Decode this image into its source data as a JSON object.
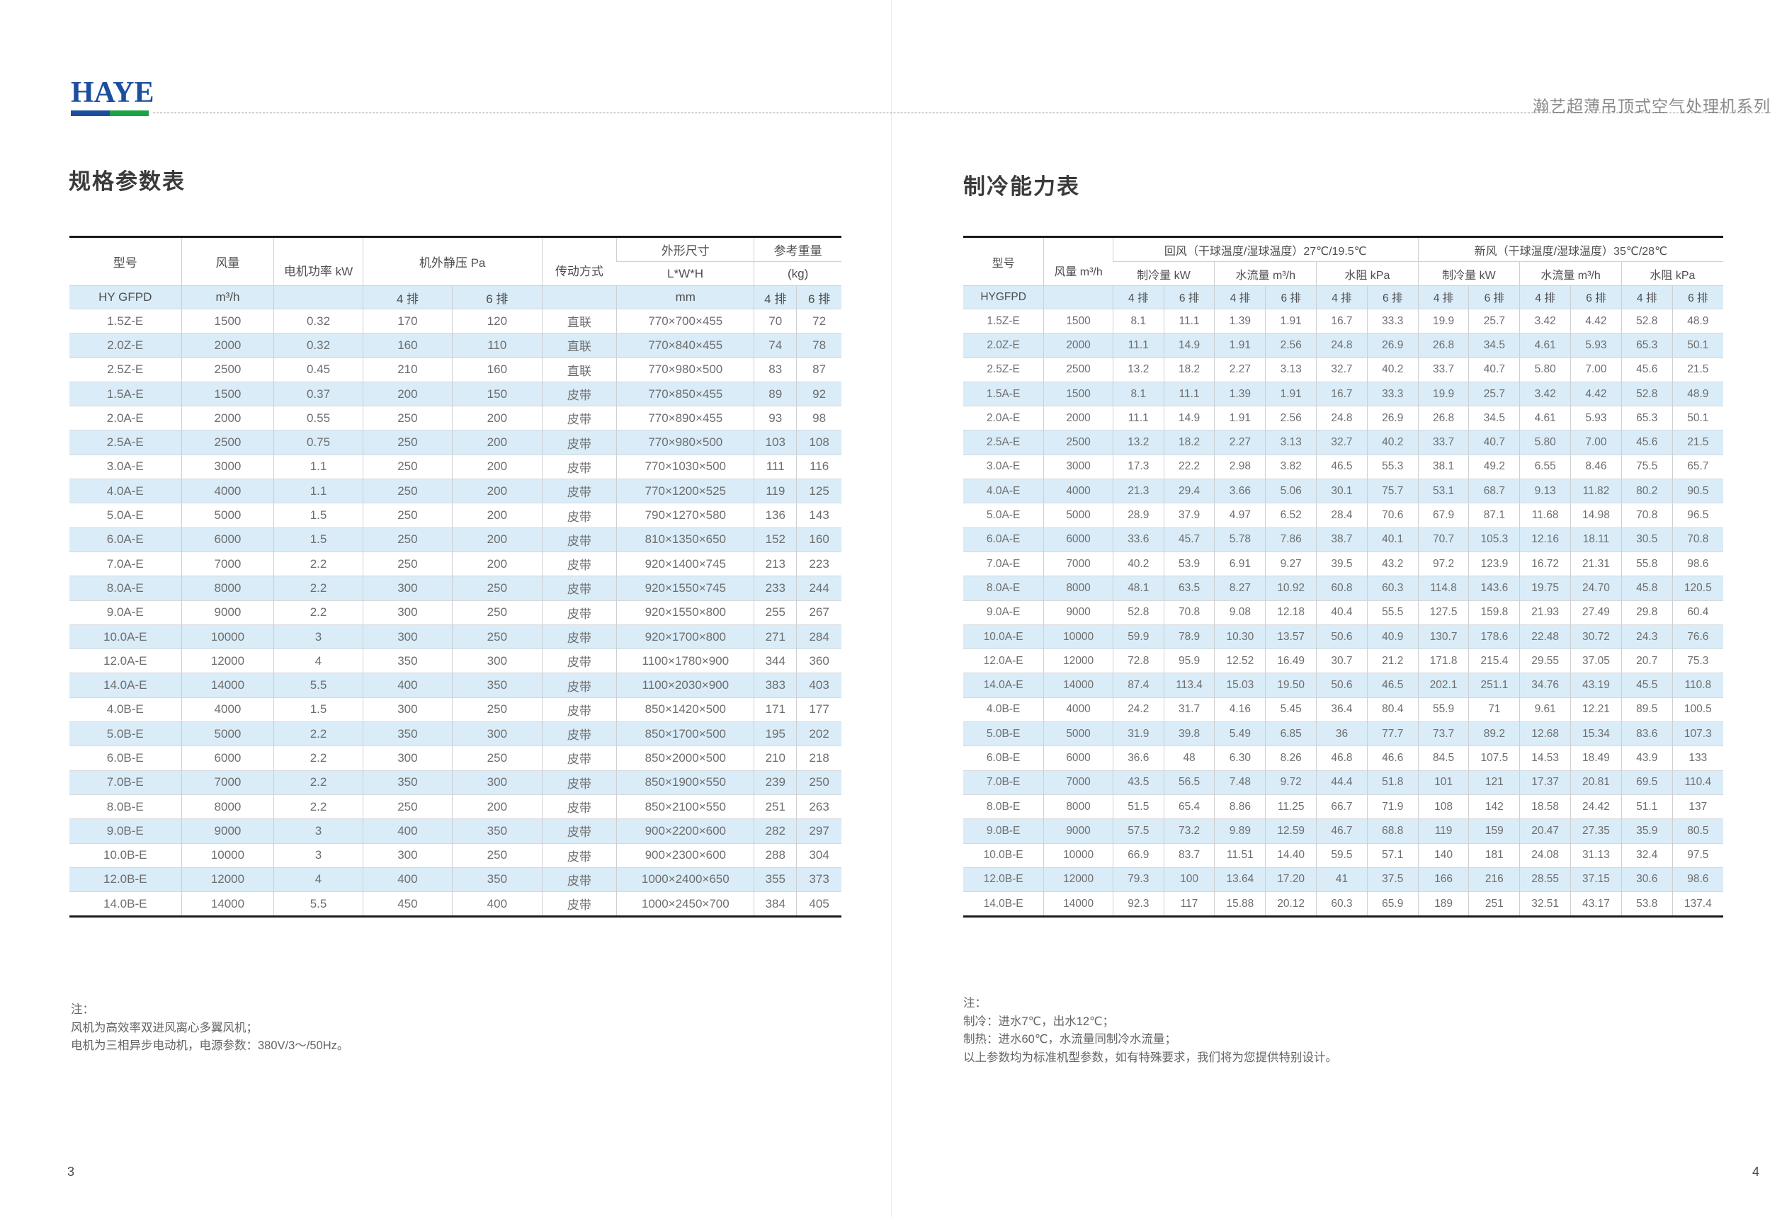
{
  "page": {
    "logo_text": "HAYE",
    "series_title": "瀚艺超薄吊顶式空气处理机系列",
    "page_number_left": "3",
    "page_number_right": "4",
    "colors": {
      "logo_blue": "#1d4e9e",
      "logo_green": "#1ba348",
      "row_highlight": "#d9ecf8"
    }
  },
  "spec_table": {
    "title": "规格参数表",
    "header": {
      "model": "型号",
      "airflow": "风量",
      "motor_power": "电机功率 kW",
      "static_pressure": "机外静压 Pa",
      "transmission": "传动方式",
      "dimensions": "外形尺寸",
      "dimensions_sub": "L*W*H",
      "weight": "参考重量",
      "weight_sub": "(kg)"
    },
    "unit_rows": [
      [
        "HY GFPD",
        "m³/h",
        "",
        "4 排",
        "6 排",
        "",
        "mm",
        "4 排",
        "6 排"
      ]
    ],
    "rows": [
      [
        "1.5Z-E",
        "1500",
        "0.32",
        "170",
        "120",
        "直联",
        "770×700×455",
        "70",
        "72"
      ],
      [
        "2.0Z-E",
        "2000",
        "0.32",
        "160",
        "110",
        "直联",
        "770×840×455",
        "74",
        "78"
      ],
      [
        "2.5Z-E",
        "2500",
        "0.45",
        "210",
        "160",
        "直联",
        "770×980×500",
        "83",
        "87"
      ],
      [
        "1.5A-E",
        "1500",
        "0.37",
        "200",
        "150",
        "皮带",
        "770×850×455",
        "89",
        "92"
      ],
      [
        "2.0A-E",
        "2000",
        "0.55",
        "250",
        "200",
        "皮带",
        "770×890×455",
        "93",
        "98"
      ],
      [
        "2.5A-E",
        "2500",
        "0.75",
        "250",
        "200",
        "皮带",
        "770×980×500",
        "103",
        "108"
      ],
      [
        "3.0A-E",
        "3000",
        "1.1",
        "250",
        "200",
        "皮带",
        "770×1030×500",
        "111",
        "116"
      ],
      [
        "4.0A-E",
        "4000",
        "1.1",
        "250",
        "200",
        "皮带",
        "770×1200×525",
        "119",
        "125"
      ],
      [
        "5.0A-E",
        "5000",
        "1.5",
        "250",
        "200",
        "皮带",
        "790×1270×580",
        "136",
        "143"
      ],
      [
        "6.0A-E",
        "6000",
        "1.5",
        "250",
        "200",
        "皮带",
        "810×1350×650",
        "152",
        "160"
      ],
      [
        "7.0A-E",
        "7000",
        "2.2",
        "250",
        "200",
        "皮带",
        "920×1400×745",
        "213",
        "223"
      ],
      [
        "8.0A-E",
        "8000",
        "2.2",
        "300",
        "250",
        "皮带",
        "920×1550×745",
        "233",
        "244"
      ],
      [
        "9.0A-E",
        "9000",
        "2.2",
        "300",
        "250",
        "皮带",
        "920×1550×800",
        "255",
        "267"
      ],
      [
        "10.0A-E",
        "10000",
        "3",
        "300",
        "250",
        "皮带",
        "920×1700×800",
        "271",
        "284"
      ],
      [
        "12.0A-E",
        "12000",
        "4",
        "350",
        "300",
        "皮带",
        "1100×1780×900",
        "344",
        "360"
      ],
      [
        "14.0A-E",
        "14000",
        "5.5",
        "400",
        "350",
        "皮带",
        "1100×2030×900",
        "383",
        "403"
      ],
      [
        "4.0B-E",
        "4000",
        "1.5",
        "300",
        "250",
        "皮带",
        "850×1420×500",
        "171",
        "177"
      ],
      [
        "5.0B-E",
        "5000",
        "2.2",
        "350",
        "300",
        "皮带",
        "850×1700×500",
        "195",
        "202"
      ],
      [
        "6.0B-E",
        "6000",
        "2.2",
        "300",
        "250",
        "皮带",
        "850×2000×500",
        "210",
        "218"
      ],
      [
        "7.0B-E",
        "7000",
        "2.2",
        "350",
        "300",
        "皮带",
        "850×1900×550",
        "239",
        "250"
      ],
      [
        "8.0B-E",
        "8000",
        "2.2",
        "250",
        "200",
        "皮带",
        "850×2100×550",
        "251",
        "263"
      ],
      [
        "9.0B-E",
        "9000",
        "3",
        "400",
        "350",
        "皮带",
        "900×2200×600",
        "282",
        "297"
      ],
      [
        "10.0B-E",
        "10000",
        "3",
        "300",
        "250",
        "皮带",
        "900×2300×600",
        "288",
        "304"
      ],
      [
        "12.0B-E",
        "12000",
        "4",
        "400",
        "350",
        "皮带",
        "1000×2400×650",
        "355",
        "373"
      ],
      [
        "14.0B-E",
        "14000",
        "5.5",
        "450",
        "400",
        "皮带",
        "1000×2450×700",
        "384",
        "405"
      ]
    ]
  },
  "cooling_table": {
    "title": "制冷能力表",
    "header": {
      "model": "型号",
      "airflow": "风量 m³/h",
      "return_air": "回风（干球温度/湿球温度）27℃/19.5℃",
      "fresh_air": "新风（干球温度/湿球温度）35℃/28℃",
      "cooling_capacity": "制冷量 kW",
      "water_flow": "水流量 m³/h",
      "water_resistance": "水阻 kPa"
    },
    "unit_rows": [
      [
        "HYGFPD",
        "",
        "4 排",
        "6 排",
        "4 排",
        "6 排",
        "4 排",
        "6 排",
        "4 排",
        "6 排",
        "4 排",
        "6 排",
        "4 排",
        "6 排"
      ]
    ],
    "rows": [
      [
        "1.5Z-E",
        "1500",
        "8.1",
        "11.1",
        "1.39",
        "1.91",
        "16.7",
        "33.3",
        "19.9",
        "25.7",
        "3.42",
        "4.42",
        "52.8",
        "48.9"
      ],
      [
        "2.0Z-E",
        "2000",
        "11.1",
        "14.9",
        "1.91",
        "2.56",
        "24.8",
        "26.9",
        "26.8",
        "34.5",
        "4.61",
        "5.93",
        "65.3",
        "50.1"
      ],
      [
        "2.5Z-E",
        "2500",
        "13.2",
        "18.2",
        "2.27",
        "3.13",
        "32.7",
        "40.2",
        "33.7",
        "40.7",
        "5.80",
        "7.00",
        "45.6",
        "21.5"
      ],
      [
        "1.5A-E",
        "1500",
        "8.1",
        "11.1",
        "1.39",
        "1.91",
        "16.7",
        "33.3",
        "19.9",
        "25.7",
        "3.42",
        "4.42",
        "52.8",
        "48.9"
      ],
      [
        "2.0A-E",
        "2000",
        "11.1",
        "14.9",
        "1.91",
        "2.56",
        "24.8",
        "26.9",
        "26.8",
        "34.5",
        "4.61",
        "5.93",
        "65.3",
        "50.1"
      ],
      [
        "2.5A-E",
        "2500",
        "13.2",
        "18.2",
        "2.27",
        "3.13",
        "32.7",
        "40.2",
        "33.7",
        "40.7",
        "5.80",
        "7.00",
        "45.6",
        "21.5"
      ],
      [
        "3.0A-E",
        "3000",
        "17.3",
        "22.2",
        "2.98",
        "3.82",
        "46.5",
        "55.3",
        "38.1",
        "49.2",
        "6.55",
        "8.46",
        "75.5",
        "65.7"
      ],
      [
        "4.0A-E",
        "4000",
        "21.3",
        "29.4",
        "3.66",
        "5.06",
        "30.1",
        "75.7",
        "53.1",
        "68.7",
        "9.13",
        "11.82",
        "80.2",
        "90.5"
      ],
      [
        "5.0A-E",
        "5000",
        "28.9",
        "37.9",
        "4.97",
        "6.52",
        "28.4",
        "70.6",
        "67.9",
        "87.1",
        "11.68",
        "14.98",
        "70.8",
        "96.5"
      ],
      [
        "6.0A-E",
        "6000",
        "33.6",
        "45.7",
        "5.78",
        "7.86",
        "38.7",
        "40.1",
        "70.7",
        "105.3",
        "12.16",
        "18.11",
        "30.5",
        "70.8"
      ],
      [
        "7.0A-E",
        "7000",
        "40.2",
        "53.9",
        "6.91",
        "9.27",
        "39.5",
        "43.2",
        "97.2",
        "123.9",
        "16.72",
        "21.31",
        "55.8",
        "98.6"
      ],
      [
        "8.0A-E",
        "8000",
        "48.1",
        "63.5",
        "8.27",
        "10.92",
        "60.8",
        "60.3",
        "114.8",
        "143.6",
        "19.75",
        "24.70",
        "45.8",
        "120.5"
      ],
      [
        "9.0A-E",
        "9000",
        "52.8",
        "70.8",
        "9.08",
        "12.18",
        "40.4",
        "55.5",
        "127.5",
        "159.8",
        "21.93",
        "27.49",
        "29.8",
        "60.4"
      ],
      [
        "10.0A-E",
        "10000",
        "59.9",
        "78.9",
        "10.30",
        "13.57",
        "50.6",
        "40.9",
        "130.7",
        "178.6",
        "22.48",
        "30.72",
        "24.3",
        "76.6"
      ],
      [
        "12.0A-E",
        "12000",
        "72.8",
        "95.9",
        "12.52",
        "16.49",
        "30.7",
        "21.2",
        "171.8",
        "215.4",
        "29.55",
        "37.05",
        "20.7",
        "75.3"
      ],
      [
        "14.0A-E",
        "14000",
        "87.4",
        "113.4",
        "15.03",
        "19.50",
        "50.6",
        "46.5",
        "202.1",
        "251.1",
        "34.76",
        "43.19",
        "45.5",
        "110.8"
      ],
      [
        "4.0B-E",
        "4000",
        "24.2",
        "31.7",
        "4.16",
        "5.45",
        "36.4",
        "80.4",
        "55.9",
        "71",
        "9.61",
        "12.21",
        "89.5",
        "100.5"
      ],
      [
        "5.0B-E",
        "5000",
        "31.9",
        "39.8",
        "5.49",
        "6.85",
        "36",
        "77.7",
        "73.7",
        "89.2",
        "12.68",
        "15.34",
        "83.6",
        "107.3"
      ],
      [
        "6.0B-E",
        "6000",
        "36.6",
        "48",
        "6.30",
        "8.26",
        "46.8",
        "46.6",
        "84.5",
        "107.5",
        "14.53",
        "18.49",
        "43.9",
        "133"
      ],
      [
        "7.0B-E",
        "7000",
        "43.5",
        "56.5",
        "7.48",
        "9.72",
        "44.4",
        "51.8",
        "101",
        "121",
        "17.37",
        "20.81",
        "69.5",
        "110.4"
      ],
      [
        "8.0B-E",
        "8000",
        "51.5",
        "65.4",
        "8.86",
        "11.25",
        "66.7",
        "71.9",
        "108",
        "142",
        "18.58",
        "24.42",
        "51.1",
        "137"
      ],
      [
        "9.0B-E",
        "9000",
        "57.5",
        "73.2",
        "9.89",
        "12.59",
        "46.7",
        "68.8",
        "119",
        "159",
        "20.47",
        "27.35",
        "35.9",
        "80.5"
      ],
      [
        "10.0B-E",
        "10000",
        "66.9",
        "83.7",
        "11.51",
        "14.40",
        "59.5",
        "57.1",
        "140",
        "181",
        "24.08",
        "31.13",
        "32.4",
        "97.5"
      ],
      [
        "12.0B-E",
        "12000",
        "79.3",
        "100",
        "13.64",
        "17.20",
        "41",
        "37.5",
        "166",
        "216",
        "28.55",
        "37.15",
        "30.6",
        "98.6"
      ],
      [
        "14.0B-E",
        "14000",
        "92.3",
        "117",
        "15.88",
        "20.12",
        "60.3",
        "65.9",
        "189",
        "251",
        "32.51",
        "43.17",
        "53.8",
        "137.4"
      ]
    ]
  },
  "notes_left": {
    "label": "注：",
    "lines": [
      "风机为高效率双进风离心多翼风机；",
      "电机为三相异步电动机，电源参数：380V/3～/50Hz。"
    ]
  },
  "notes_right": {
    "label": "注：",
    "lines": [
      "制冷：进水7℃，出水12℃；",
      "制热：进水60℃，水流量同制冷水流量；",
      "以上参数均为标准机型参数，如有特殊要求，我们将为您提供特别设计。"
    ]
  }
}
